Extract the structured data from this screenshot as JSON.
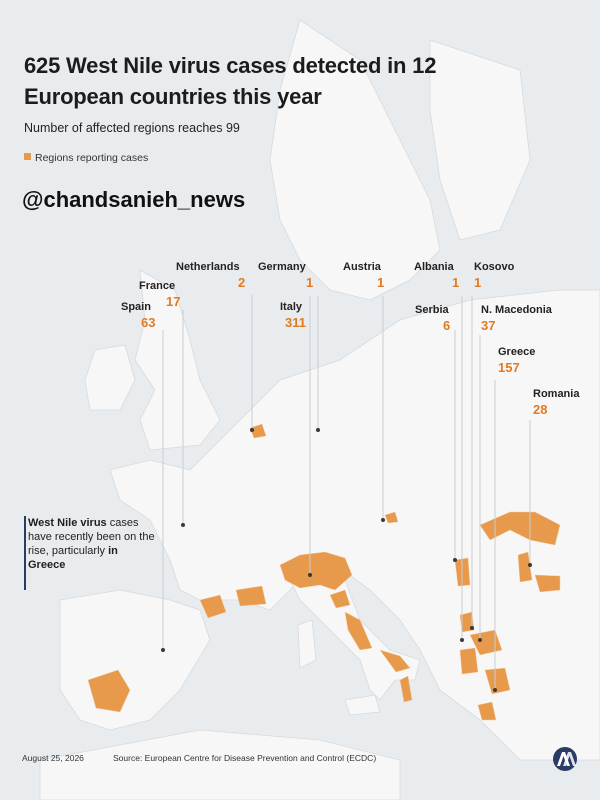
{
  "header": {
    "title": "625 West Nile virus cases detected in 12 European countries this year",
    "subtitle": "Number of affected regions reaches 99"
  },
  "legend": {
    "label": "Regions reporting cases",
    "color": "#e79a4c"
  },
  "watermark": "@chandsanieh_news",
  "countries": [
    {
      "name": "Netherlands",
      "value": "2"
    },
    {
      "name": "Germany",
      "value": "1"
    },
    {
      "name": "Austria",
      "value": "1"
    },
    {
      "name": "Albania",
      "value": "1"
    },
    {
      "name": "Kosovo",
      "value": "1"
    },
    {
      "name": "France",
      "value": "17"
    },
    {
      "name": "Spain",
      "value": "63"
    },
    {
      "name": "Italy",
      "value": "311"
    },
    {
      "name": "Serbia",
      "value": "6"
    },
    {
      "name": "N. Macedonia",
      "value": "37"
    },
    {
      "name": "Greece",
      "value": "157"
    },
    {
      "name": "Romania",
      "value": "28"
    }
  ],
  "note": {
    "bold_start": "West Nile virus",
    "normal": " cases have recently been on the rise, particularly",
    "bold_end": " in Greece"
  },
  "footer": {
    "date": "August 25, 2026",
    "source": "Source: European Centre for Disease Prevention and Control (ECDC)"
  },
  "colors": {
    "sea": "#e9ecef",
    "land": "#f7f7f7",
    "highlight": "#e79a4c",
    "accent": "#e07b22",
    "logo": "#2a3b66"
  },
  "logo_icon": "aa-agency-logo"
}
